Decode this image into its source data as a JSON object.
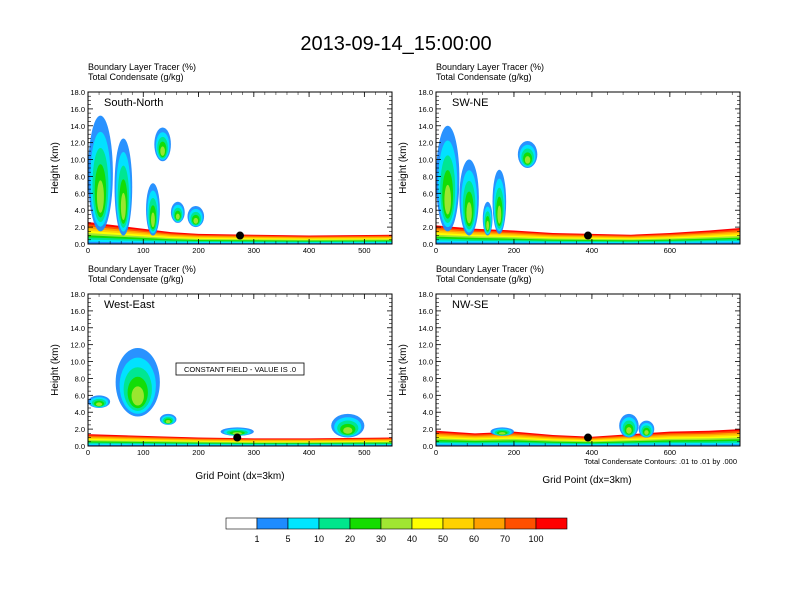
{
  "figure": {
    "title": "2013-09-14_15:00:00",
    "panel_header_line1": "Boundary Layer Tracer   (%)",
    "panel_header_line2": "Total Condensate   (g/kg)",
    "ylabel": "Height (km)",
    "xlabel": "Grid Point (dx=3km)",
    "constant_field_note": "CONSTANT FIELD - VALUE IS .0",
    "contour_note": "Total Condensate Contours: .01 to .01 by .000"
  },
  "colorbar": {
    "levels": [
      "1",
      "5",
      "10",
      "20",
      "30",
      "40",
      "50",
      "60",
      "70",
      "100"
    ],
    "colors": [
      "#ffffff",
      "#1e8cff",
      "#00e6ff",
      "#00e68c",
      "#14dc00",
      "#a0e632",
      "#ffff00",
      "#ffd200",
      "#ffa000",
      "#ff5000",
      "#ff0000"
    ]
  },
  "chart_data": [
    {
      "type": "heatmap",
      "name": "South-North",
      "xlim": [
        0,
        550
      ],
      "ylim": [
        0,
        18
      ],
      "xticks": [
        0,
        100,
        200,
        300,
        400,
        500
      ],
      "yticks": [
        0,
        2,
        4,
        6,
        8,
        10,
        12,
        14,
        16,
        18
      ],
      "ytick_labels": [
        "0.0",
        "2.0",
        "4.0",
        "6.0",
        "8.0",
        "10.0",
        "12.0",
        "14.0",
        "16.0",
        "18.0"
      ],
      "marker_x": 275,
      "boundary_layer": [
        [
          0,
          2.6
        ],
        [
          50,
          2.2
        ],
        [
          100,
          1.8
        ],
        [
          150,
          1.4
        ],
        [
          200,
          1.2
        ],
        [
          300,
          1.1
        ],
        [
          400,
          1.0
        ],
        [
          550,
          1.1
        ]
      ],
      "cloud_cells": [
        {
          "x": [
            0,
            45
          ],
          "y": [
            1.5,
            15.2
          ]
        },
        {
          "x": [
            48,
            80
          ],
          "y": [
            1.0,
            12.5
          ]
        },
        {
          "x": [
            120,
            150
          ],
          "y": [
            9.8,
            13.8
          ]
        },
        {
          "x": [
            150,
            175
          ],
          "y": [
            2.5,
            5.0
          ]
        },
        {
          "x": [
            180,
            210
          ],
          "y": [
            2.0,
            4.5
          ]
        },
        {
          "x": [
            105,
            130
          ],
          "y": [
            1.0,
            7.2
          ]
        }
      ]
    },
    {
      "type": "heatmap",
      "name": "SW-NE",
      "xlim": [
        0,
        780
      ],
      "ylim": [
        0,
        18
      ],
      "xticks": [
        0,
        200,
        400,
        600
      ],
      "yticks": [
        0,
        2,
        4,
        6,
        8,
        10,
        12,
        14,
        16,
        18
      ],
      "ytick_labels": [
        "0.0",
        "2.0",
        "4.0",
        "6.0",
        "8.0",
        "10.0",
        "12.0",
        "14.0",
        "16.0",
        "18.0"
      ],
      "marker_x": 390,
      "boundary_layer": [
        [
          0,
          2.2
        ],
        [
          100,
          1.8
        ],
        [
          200,
          1.6
        ],
        [
          300,
          1.3
        ],
        [
          400,
          1.2
        ],
        [
          500,
          1.1
        ],
        [
          600,
          1.3
        ],
        [
          700,
          1.6
        ],
        [
          780,
          1.9
        ]
      ],
      "cloud_cells": [
        {
          "x": [
            0,
            60
          ],
          "y": [
            1.5,
            14.0
          ]
        },
        {
          "x": [
            60,
            110
          ],
          "y": [
            1.0,
            10.0
          ]
        },
        {
          "x": [
            145,
            180
          ],
          "y": [
            1.2,
            8.8
          ]
        },
        {
          "x": [
            210,
            260
          ],
          "y": [
            9.0,
            12.2
          ]
        },
        {
          "x": [
            120,
            145
          ],
          "y": [
            1.0,
            5.0
          ]
        }
      ]
    },
    {
      "type": "heatmap",
      "name": "West-East",
      "xlim": [
        0,
        550
      ],
      "ylim": [
        0,
        18
      ],
      "xticks": [
        0,
        100,
        200,
        300,
        400,
        500
      ],
      "yticks": [
        0,
        2,
        4,
        6,
        8,
        10,
        12,
        14,
        16,
        18
      ],
      "ytick_labels": [
        "0.0",
        "2.0",
        "4.0",
        "6.0",
        "8.0",
        "10.0",
        "12.0",
        "14.0",
        "16.0",
        "18.0"
      ],
      "marker_x": 270,
      "boundary_layer": [
        [
          0,
          1.4
        ],
        [
          100,
          1.2
        ],
        [
          200,
          1.0
        ],
        [
          300,
          0.9
        ],
        [
          400,
          0.9
        ],
        [
          550,
          1.0
        ]
      ],
      "cloud_cells": [
        {
          "x": [
            50,
            130
          ],
          "y": [
            3.5,
            11.6
          ]
        },
        {
          "x": [
            0,
            40
          ],
          "y": [
            4.5,
            6.0
          ]
        },
        {
          "x": [
            240,
            300
          ],
          "y": [
            1.2,
            2.2
          ]
        },
        {
          "x": [
            440,
            500
          ],
          "y": [
            1.0,
            3.8
          ]
        },
        {
          "x": [
            130,
            160
          ],
          "y": [
            2.5,
            3.8
          ]
        }
      ]
    },
    {
      "type": "heatmap",
      "name": "NW-SE",
      "xlim": [
        0,
        780
      ],
      "ylim": [
        0,
        18
      ],
      "xticks": [
        0,
        200,
        400,
        600
      ],
      "yticks": [
        0,
        2,
        4,
        6,
        8,
        10,
        12,
        14,
        16,
        18
      ],
      "ytick_labels": [
        "0.0",
        "2.0",
        "4.0",
        "6.0",
        "8.0",
        "10.0",
        "12.0",
        "14.0",
        "16.0",
        "18.0"
      ],
      "marker_x": 390,
      "boundary_layer": [
        [
          0,
          1.8
        ],
        [
          100,
          1.5
        ],
        [
          200,
          1.7
        ],
        [
          300,
          1.3
        ],
        [
          400,
          1.1
        ],
        [
          500,
          1.4
        ],
        [
          600,
          1.7
        ],
        [
          700,
          1.8
        ],
        [
          780,
          2.0
        ]
      ],
      "cloud_cells": [
        {
          "x": [
            470,
            520
          ],
          "y": [
            1.0,
            3.8
          ]
        },
        {
          "x": [
            520,
            560
          ],
          "y": [
            1.0,
            3.0
          ]
        },
        {
          "x": [
            140,
            200
          ],
          "y": [
            1.2,
            2.2
          ]
        }
      ]
    }
  ]
}
